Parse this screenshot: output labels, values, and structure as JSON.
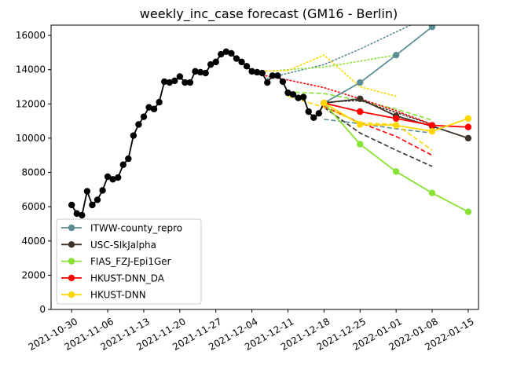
{
  "chart_data": {
    "type": "line",
    "title": "weekly_inc_case forecast (GM16 - Berlin)",
    "xlabel": "",
    "ylabel": "",
    "ylim": [
      0,
      16600
    ],
    "xlim": [
      "2021-10-26",
      "2022-01-17"
    ],
    "grid": false,
    "legend_position": "lower-left",
    "x_ticks": [
      "2021-10-30",
      "2021-11-06",
      "2021-11-13",
      "2021-11-20",
      "2021-11-27",
      "2021-12-04",
      "2021-12-11",
      "2021-12-18",
      "2021-12-25",
      "2022-01-01",
      "2022-01-08",
      "2022-01-15"
    ],
    "y_ticks": [
      0,
      2000,
      4000,
      6000,
      8000,
      10000,
      12000,
      14000,
      16000
    ],
    "observed": {
      "color": "#000000",
      "x": [
        "2021-10-30",
        "2021-10-31",
        "2021-11-01",
        "2021-11-02",
        "2021-11-03",
        "2021-11-04",
        "2021-11-05",
        "2021-11-06",
        "2021-11-07",
        "2021-11-08",
        "2021-11-09",
        "2021-11-10",
        "2021-11-11",
        "2021-11-12",
        "2021-11-13",
        "2021-11-14",
        "2021-11-15",
        "2021-11-16",
        "2021-11-17",
        "2021-11-18",
        "2021-11-19",
        "2021-11-20",
        "2021-11-21",
        "2021-11-22",
        "2021-11-23",
        "2021-11-24",
        "2021-11-25",
        "2021-11-26",
        "2021-11-27",
        "2021-11-28",
        "2021-11-29",
        "2021-11-30",
        "2021-12-01",
        "2021-12-02",
        "2021-12-03",
        "2021-12-04",
        "2021-12-05",
        "2021-12-06",
        "2021-12-07",
        "2021-12-08",
        "2021-12-09",
        "2021-12-10",
        "2021-12-11",
        "2021-12-12",
        "2021-12-13",
        "2021-12-14",
        "2021-12-15",
        "2021-12-16",
        "2021-12-17",
        "2021-12-18"
      ],
      "y": [
        6100,
        5600,
        5500,
        6900,
        6100,
        6400,
        6950,
        7750,
        7600,
        7700,
        8450,
        8800,
        10150,
        10800,
        11250,
        11800,
        11700,
        12100,
        13300,
        13250,
        13350,
        13600,
        13250,
        13250,
        13900,
        13850,
        13800,
        14300,
        14450,
        14900,
        15050,
        14950,
        14650,
        14450,
        14200,
        13900,
        13850,
        13800,
        13250,
        13650,
        13650,
        13300,
        12650,
        12550,
        12350,
        12400,
        11550,
        11200,
        11450,
        12050
      ]
    },
    "series": [
      {
        "name": "ITWW-county_repro",
        "color": "#5b8e94",
        "x": [
          "2021-12-18",
          "2021-12-25",
          "2022-01-01",
          "2022-01-08"
        ],
        "y": [
          12050,
          13250,
          14850,
          16500
        ],
        "upper": {
          "x": [
            "2021-12-07",
            "2021-12-18",
            "2021-12-25",
            "2022-01-01",
            "2022-01-08"
          ],
          "y": [
            13500,
            14300,
            15200,
            16200,
            17200
          ]
        },
        "lower": {
          "x": [
            "2021-12-18",
            "2021-12-25",
            "2022-01-01",
            "2022-01-08"
          ],
          "y": [
            11100,
            10850,
            10550,
            10300
          ]
        }
      },
      {
        "name": "USC-SIkJalpha",
        "color": "#3d3128",
        "x": [
          "2021-12-18",
          "2021-12-25",
          "2022-01-01",
          "2022-01-08",
          "2022-01-15"
        ],
        "y": [
          12050,
          12300,
          11300,
          10700,
          10000
        ],
        "upper": {
          "x": [
            "2021-12-18",
            "2021-12-25",
            "2022-01-01",
            "2022-01-08"
          ],
          "y": [
            12100,
            12200,
            11500,
            10800
          ]
        },
        "lower": {
          "x": [
            "2021-12-18",
            "2021-12-25",
            "2022-01-01",
            "2022-01-08"
          ],
          "y": [
            11800,
            10300,
            9300,
            8350
          ]
        }
      },
      {
        "name": "FIAS_FZJ-Epi1Ger",
        "color": "#8ae234",
        "x": [
          "2021-12-18",
          "2021-12-25",
          "2022-01-01",
          "2022-01-08",
          "2022-01-15"
        ],
        "y": [
          12050,
          9650,
          8050,
          6800,
          5700
        ],
        "upper": {
          "x": [
            "2021-12-04",
            "2021-12-11",
            "2021-12-18",
            "2021-12-25",
            "2022-01-01"
          ],
          "y": [
            13850,
            14000,
            14150,
            14500,
            14850
          ]
        },
        "lower": {
          "x": [
            "2021-12-11",
            "2021-12-18",
            "2021-12-25",
            "2022-01-01",
            "2022-01-08"
          ],
          "y": [
            12700,
            12600,
            12200,
            11700,
            11050
          ]
        }
      },
      {
        "name": "HKUST-DNN_DA",
        "color": "#ff0000",
        "x": [
          "2021-12-18",
          "2021-12-25",
          "2022-01-01",
          "2022-01-08",
          "2022-01-15"
        ],
        "y": [
          12050,
          11550,
          11150,
          10750,
          10650
        ],
        "upper": {
          "x": [
            "2021-12-04",
            "2021-12-11",
            "2021-12-18",
            "2021-12-25",
            "2022-01-01",
            "2022-01-08"
          ],
          "y": [
            13800,
            13400,
            12950,
            12300,
            11600,
            10800
          ]
        },
        "lower": {
          "x": [
            "2021-12-18",
            "2021-12-25",
            "2022-01-01",
            "2022-01-08"
          ],
          "y": [
            11850,
            10900,
            10100,
            9000
          ]
        }
      },
      {
        "name": "HKUST-DNN",
        "color": "#ffd700",
        "x": [
          "2021-12-18",
          "2021-12-25",
          "2022-01-01",
          "2022-01-08",
          "2022-01-15"
        ],
        "y": [
          12050,
          10800,
          10750,
          10400,
          11150
        ],
        "upper": {
          "x": [
            "2021-12-04",
            "2021-12-11",
            "2021-12-18",
            "2021-12-25",
            "2022-01-01"
          ],
          "y": [
            13900,
            13950,
            14850,
            13000,
            12450
          ]
        },
        "lower": {
          "x": [
            "2021-12-11",
            "2021-12-18",
            "2021-12-25",
            "2022-01-01",
            "2022-01-08"
          ],
          "y": [
            12450,
            11800,
            10900,
            10800,
            9300
          ]
        }
      }
    ]
  }
}
